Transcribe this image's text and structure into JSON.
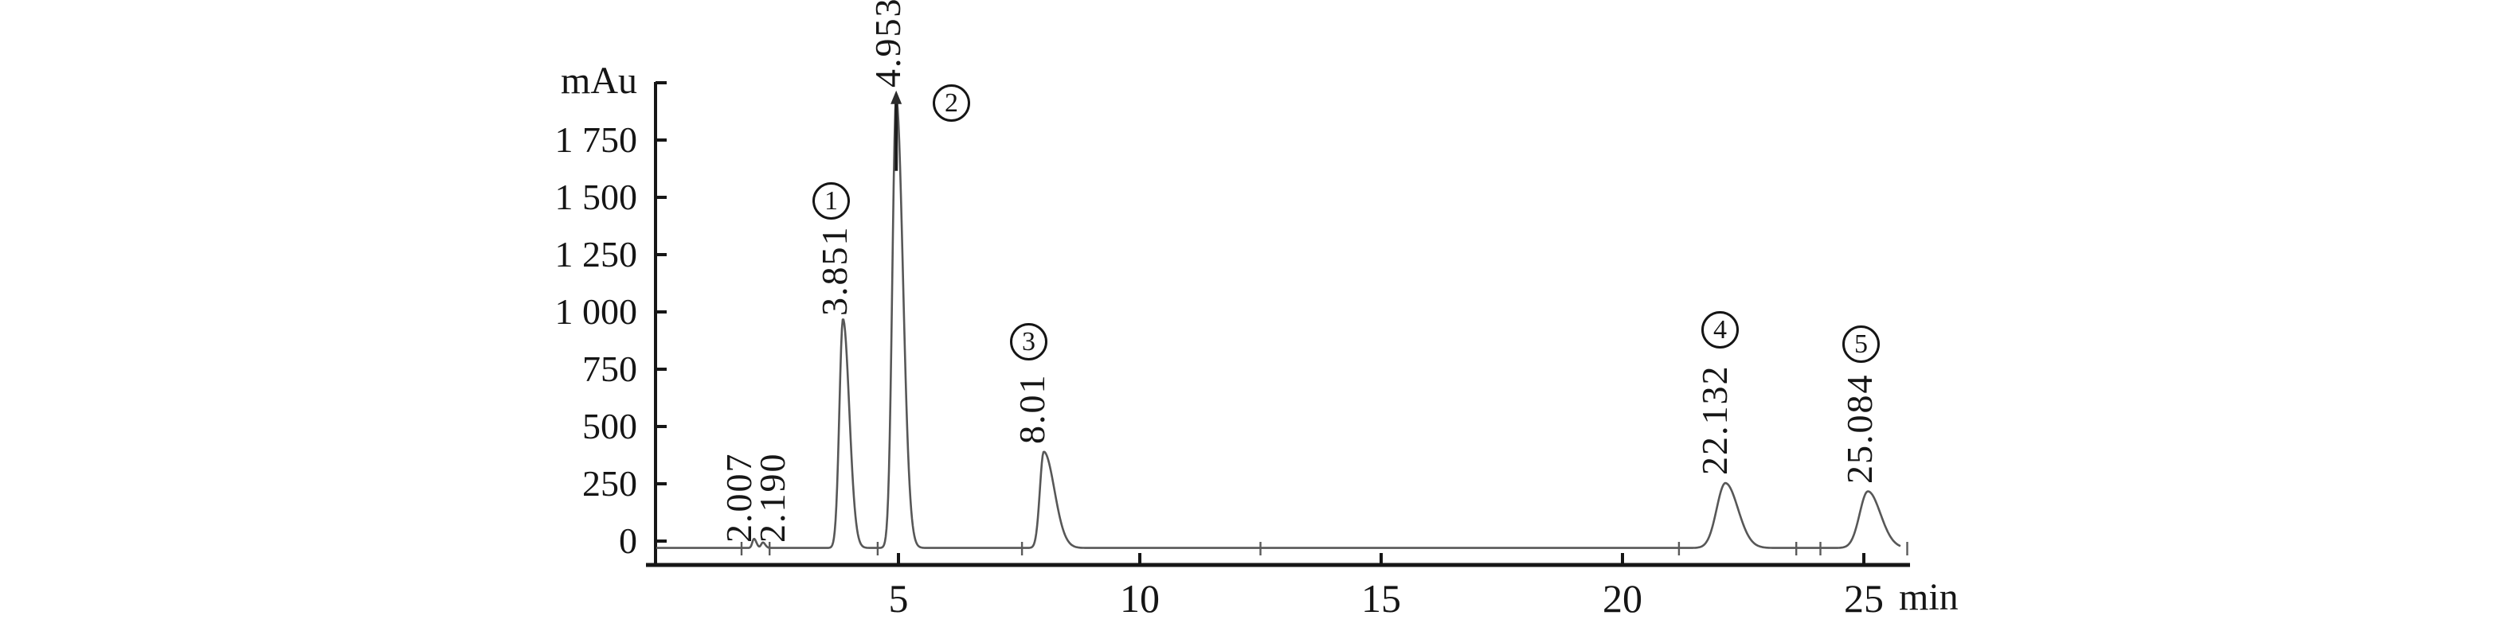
{
  "figure": {
    "y_axis_unit": "mAu",
    "x_axis_unit": "min",
    "y_tick_labels": [
      "1 750",
      "1 500",
      "1 250",
      "1 000",
      "750",
      "500",
      "250",
      "0"
    ],
    "x_tick_labels": [
      "5",
      "10",
      "15",
      "20",
      "25"
    ]
  },
  "chart_data": {
    "type": "line",
    "title": "",
    "xlabel": "min",
    "ylabel": "mAu",
    "xlim": [
      0,
      26
    ],
    "ylim": [
      0,
      2000
    ],
    "x_tick_values": [
      5,
      10,
      15,
      20,
      25
    ],
    "y_tick_values": [
      0,
      250,
      500,
      750,
      1000,
      1250,
      1500,
      1750,
      2000
    ],
    "baseline_mau": -30,
    "peaks": [
      {
        "number": "",
        "rt_label": "2.007",
        "rt_min": 2.007,
        "height_mau": 40,
        "sigma_left_min": 0.035,
        "sigma_right_min": 0.05
      },
      {
        "number": "",
        "rt_label": "2.190",
        "rt_min": 2.19,
        "height_mau": 24,
        "sigma_left_min": 0.035,
        "sigma_right_min": 0.05
      },
      {
        "number": "1",
        "rt_label": "3.851",
        "rt_min": 3.851,
        "height_mau": 1000,
        "sigma_left_min": 0.075,
        "sigma_right_min": 0.13
      },
      {
        "number": "2",
        "rt_label": "4.953",
        "rt_min": 4.953,
        "height_mau": 1965,
        "sigma_left_min": 0.08,
        "sigma_right_min": 0.14
      },
      {
        "number": "3",
        "rt_label": "8.01",
        "rt_min": 8.01,
        "height_mau": 420,
        "sigma_left_min": 0.08,
        "sigma_right_min": 0.22
      },
      {
        "number": "4",
        "rt_label": "22.132",
        "rt_min": 22.132,
        "height_mau": 283,
        "sigma_left_min": 0.18,
        "sigma_right_min": 0.26
      },
      {
        "number": "5",
        "rt_label": "25.084",
        "rt_min": 25.084,
        "height_mau": 247,
        "sigma_left_min": 0.17,
        "sigma_right_min": 0.26
      }
    ],
    "integration_marks_min": [
      1.75,
      2.33,
      4.57,
      7.56,
      12.5,
      21.17,
      23.6,
      24.1,
      25.9
    ],
    "trace_color": "#575757",
    "axis_color": "#161616"
  }
}
